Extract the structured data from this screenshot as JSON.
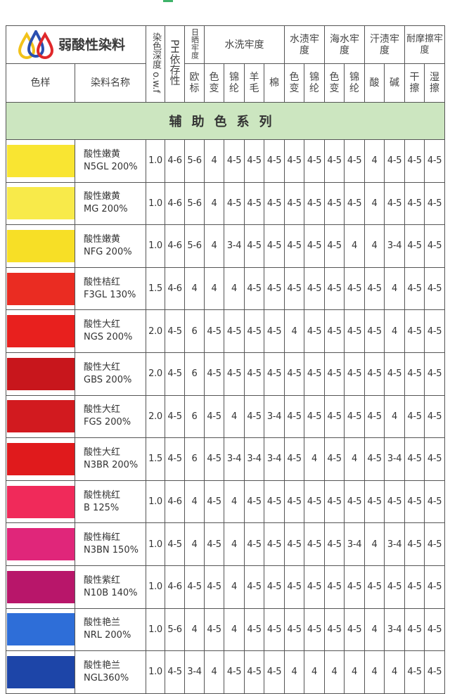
{
  "header": {
    "title": "弱酸性染料",
    "col_swatch": "色样",
    "col_name": "染料名称",
    "col_depth": "染色深度 o.w.f",
    "col_ph": "PH依存性",
    "col_light": "日晒牢度",
    "col_light_sub": "欧标",
    "group_wash": "水洗牢度",
    "wash_subs": [
      "色变",
      "锦纶",
      "羊毛",
      "棉"
    ],
    "group_water": "水渍牢度",
    "water_subs": [
      "色变",
      "锦纶"
    ],
    "group_sea": "海水牢度",
    "sea_subs": [
      "色变",
      "锦纶"
    ],
    "group_sweat": "汗渍牢度",
    "sweat_subs": [
      "酸",
      "碱"
    ],
    "group_rub": "耐摩擦牢度",
    "rub_subs": [
      "干擦",
      "湿擦"
    ]
  },
  "section_title": "辅助色系列",
  "rows": [
    {
      "name": "酸性嫩黄",
      "code": "N5GL 200%",
      "color": "#f9e532",
      "values": [
        "1.0",
        "4-6",
        "5-6",
        "4",
        "4-5",
        "4-5",
        "4-5",
        "4-5",
        "4-5",
        "4-5",
        "4-5",
        "4",
        "4-5",
        "4-5",
        "4-5"
      ]
    },
    {
      "name": "酸性嫩黄",
      "code": "MG 200%",
      "color": "#f8ea4a",
      "values": [
        "1.0",
        "4-6",
        "5-6",
        "4",
        "4-5",
        "4-5",
        "4-5",
        "4-5",
        "4-5",
        "4-5",
        "4-5",
        "4",
        "4-5",
        "4-5",
        "4-5"
      ]
    },
    {
      "name": "酸性嫩黄",
      "code": "NFG 200%",
      "color": "#f7df26",
      "values": [
        "1.0",
        "4-6",
        "5-6",
        "4",
        "3-4",
        "4-5",
        "4-5",
        "4-5",
        "4-5",
        "4-5",
        "4",
        "4",
        "3-4",
        "4-5",
        "4-5"
      ]
    },
    {
      "name": "酸性桔红",
      "code": "F3GL 130%",
      "color": "#ea2c22",
      "values": [
        "1.5",
        "4-6",
        "4",
        "4",
        "4",
        "4-5",
        "4-5",
        "4-5",
        "4-5",
        "4-5",
        "4-5",
        "4-5",
        "4",
        "4-5",
        "4-5"
      ]
    },
    {
      "name": "酸性大红",
      "code": "NGS 200%",
      "color": "#e8201e",
      "values": [
        "2.0",
        "4-5",
        "6",
        "4-5",
        "4-5",
        "4-5",
        "4-5",
        "4",
        "4-5",
        "4-5",
        "4-5",
        "4-5",
        "4",
        "4-5",
        "4-5"
      ]
    },
    {
      "name": "酸性大红",
      "code": "GBS 200%",
      "color": "#c8161c",
      "values": [
        "2.0",
        "4-5",
        "6",
        "4-5",
        "4-5",
        "4-5",
        "4-5",
        "4-5",
        "4-5",
        "4-5",
        "4-5",
        "4-5",
        "4-5",
        "4-5",
        "4-5"
      ]
    },
    {
      "name": "酸性大红",
      "code": "FGS 200%",
      "color": "#d21a1f",
      "values": [
        "2.0",
        "4-5",
        "6",
        "4-5",
        "4",
        "4-5",
        "3-4",
        "4-5",
        "4-5",
        "4-5",
        "4-5",
        "4-5",
        "4",
        "4-5",
        "4-5"
      ]
    },
    {
      "name": "酸性大红",
      "code": "N3BR 200%",
      "color": "#e01a1c",
      "values": [
        "1.5",
        "4-5",
        "6",
        "4-5",
        "3-4",
        "3-4",
        "3-4",
        "4-5",
        "4",
        "4-5",
        "4",
        "4-5",
        "3-4",
        "4-5",
        "4-5"
      ]
    },
    {
      "name": "酸性桃红",
      "code": "B 125%",
      "color": "#f02a5a",
      "values": [
        "1.0",
        "4-6",
        "4",
        "4-5",
        "4",
        "4-5",
        "4-5",
        "4-5",
        "4-5",
        "4-5",
        "4-5",
        "4-5",
        "4-5",
        "4-5",
        "4-5"
      ]
    },
    {
      "name": "酸性梅红",
      "code": "N3BN 150%",
      "color": "#e0267a",
      "values": [
        "1.0",
        "4-5",
        "4",
        "4-5",
        "4",
        "4-5",
        "4-5",
        "4-5",
        "4-5",
        "4-5",
        "3-4",
        "4",
        "3-4",
        "4-5",
        "4-5"
      ]
    },
    {
      "name": "酸性紫红",
      "code": "N10B 140%",
      "color": "#b8166a",
      "values": [
        "1.0",
        "4-6",
        "4-5",
        "4-5",
        "4",
        "4-5",
        "4-5",
        "4-5",
        "4-5",
        "4-5",
        "4-5",
        "4-5",
        "4-5",
        "4-5",
        "4-5"
      ]
    },
    {
      "name": "酸性艳兰",
      "code": "NRL 200%",
      "color": "#2e6ed8",
      "values": [
        "1.0",
        "5-6",
        "4",
        "4-5",
        "4",
        "4-5",
        "4-5",
        "4-5",
        "4-5",
        "4-5",
        "4-5",
        "4",
        "3-4",
        "4-5",
        "4-5"
      ]
    },
    {
      "name": "酸性艳兰",
      "code": "NGL360%",
      "color": "#1d45a8",
      "values": [
        "1.0",
        "4-5",
        "3-4",
        "4",
        "4-5",
        "4-5",
        "4-5",
        "4",
        "4",
        "4",
        "4",
        "4",
        "4",
        "4-5",
        "4-5"
      ]
    }
  ],
  "colors": {
    "band": "#cce6c0",
    "logo_yellow": "#f2c21a",
    "logo_blue": "#2b4fb0",
    "logo_red": "#e0282a"
  }
}
